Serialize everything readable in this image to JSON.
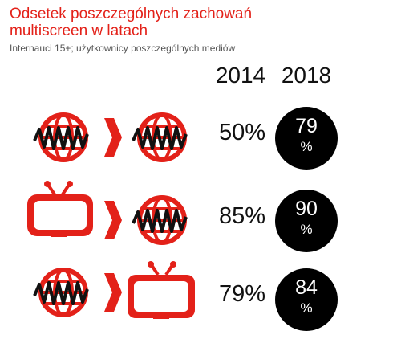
{
  "title": "Odsetek poszczególnych zachowań multiscreen w latach",
  "subtitle": "Internauci 15+; użytkownicy poszczególnych mediów",
  "colors": {
    "accent": "#e32119",
    "circle": "#000000"
  },
  "chart_data": {
    "type": "table",
    "columns": [
      "2014",
      "2018"
    ],
    "rows": [
      {
        "from_icon": "internet-globe-icon",
        "to_icon": "internet-globe-icon",
        "v2014": "50%",
        "v2018_num": "79",
        "v2018_unit": "%",
        "values": [
          50,
          79
        ]
      },
      {
        "from_icon": "tv-icon",
        "to_icon": "internet-globe-icon",
        "v2014": "85%",
        "v2018_num": "90",
        "v2018_unit": "%",
        "values": [
          85,
          90
        ]
      },
      {
        "from_icon": "internet-globe-icon",
        "to_icon": "tv-icon",
        "v2014": "79%",
        "v2018_num": "84",
        "v2018_unit": "%",
        "values": [
          79,
          84
        ]
      }
    ]
  }
}
